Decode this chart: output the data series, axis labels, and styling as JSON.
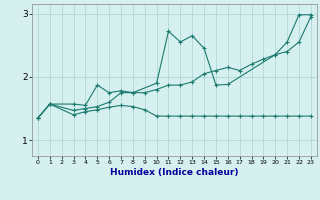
{
  "xlabel": "Humidex (Indice chaleur)",
  "xlim": [
    -0.5,
    23.5
  ],
  "ylim": [
    0.75,
    3.15
  ],
  "yticks": [
    1,
    2,
    3
  ],
  "xticks": [
    0,
    1,
    2,
    3,
    4,
    5,
    6,
    7,
    8,
    9,
    10,
    11,
    12,
    13,
    14,
    15,
    16,
    17,
    18,
    19,
    20,
    21,
    22,
    23
  ],
  "bg_color": "#d6efef",
  "grid_color": "#b0d8d8",
  "line_color": "#1a7a6e",
  "line1_x": [
    0,
    1,
    3,
    4,
    5,
    6,
    7,
    8,
    10,
    11,
    12,
    13,
    14,
    15,
    16,
    20,
    21,
    22,
    23
  ],
  "line1_y": [
    1.35,
    1.57,
    1.57,
    1.55,
    1.87,
    1.75,
    1.78,
    1.75,
    1.9,
    2.72,
    2.55,
    2.65,
    2.45,
    1.87,
    1.88,
    2.35,
    2.55,
    2.98,
    2.98
  ],
  "line2_x": [
    0,
    1,
    3,
    4,
    5,
    6,
    7,
    8,
    9,
    10,
    11,
    12,
    13,
    14,
    15,
    16,
    17,
    18,
    19,
    20,
    21,
    22,
    23
  ],
  "line2_y": [
    1.35,
    1.57,
    1.47,
    1.5,
    1.53,
    1.6,
    1.75,
    1.75,
    1.75,
    1.8,
    1.87,
    1.87,
    1.92,
    2.05,
    2.1,
    2.15,
    2.1,
    2.2,
    2.28,
    2.35,
    2.4,
    2.55,
    2.95
  ],
  "line3_x": [
    0,
    1,
    3,
    4,
    5,
    6,
    7,
    8,
    9,
    10,
    11,
    12,
    13,
    14,
    15,
    16,
    17,
    18,
    19,
    20,
    21,
    22,
    23
  ],
  "line3_y": [
    1.35,
    1.57,
    1.4,
    1.45,
    1.48,
    1.52,
    1.55,
    1.53,
    1.48,
    1.38,
    1.38,
    1.38,
    1.38,
    1.38,
    1.38,
    1.38,
    1.38,
    1.38,
    1.38,
    1.38,
    1.38,
    1.38,
    1.38
  ]
}
